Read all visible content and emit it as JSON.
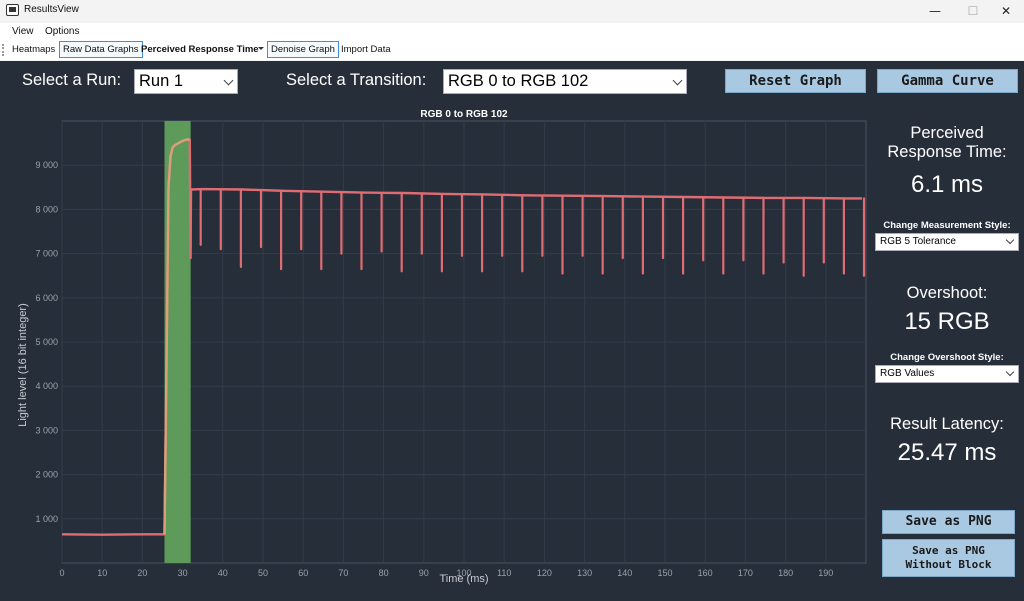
{
  "window": {
    "title": "ResultsView",
    "minimize": "—",
    "maximize": "☐",
    "close": "✕"
  },
  "menu": {
    "items": [
      "View",
      "Options"
    ]
  },
  "toolbar": {
    "heatmaps": "Heatmaps",
    "raw_data_graphs": "Raw Data Graphs",
    "perceived_response_time": "Perceived Response Time",
    "denoise_graph": "Denoise Graph",
    "import_data": "Import Data"
  },
  "controls": {
    "select_run_label": "Select a Run:",
    "run_value": "Run 1",
    "select_transition_label": "Select a Transition:",
    "transition_value": "RGB 0 to RGB 102",
    "reset_graph": "Reset Graph",
    "gamma_curve": "Gamma Curve"
  },
  "stats": {
    "perceived_label_1": "Perceived",
    "perceived_label_2": "Response Time:",
    "perceived_value": "6.1 ms",
    "measurement_style_label": "Change Measurement Style:",
    "measurement_style_value": "RGB 5 Tolerance",
    "overshoot_label": "Overshoot:",
    "overshoot_value": "15 RGB",
    "overshoot_style_label": "Change Overshoot Style:",
    "overshoot_style_value": "RGB Values",
    "latency_label": "Result Latency:",
    "latency_value": "25.47 ms"
  },
  "buttons": {
    "save_png": "Save as PNG",
    "save_png_no_block_1": "Save as PNG",
    "save_png_no_block_2": "Without Block"
  },
  "colors": {
    "background": "#262e3a",
    "line": "#e06c73",
    "highlight_line": "#d9a07a",
    "highlight_block": "#5e9b5b",
    "button": "#a9c9e2"
  },
  "chart_data": {
    "type": "line",
    "title": "RGB 0 to RGB 102",
    "xlabel": "Time (ms)",
    "ylabel": "Light level (16 bit integer)",
    "xlim": [
      0,
      200
    ],
    "ylim": [
      0,
      10000
    ],
    "x_ticks": [
      0,
      10,
      20,
      30,
      40,
      50,
      60,
      70,
      80,
      90,
      100,
      110,
      120,
      130,
      140,
      150,
      160,
      170,
      180,
      190
    ],
    "y_ticks": [
      1000,
      2000,
      3000,
      4000,
      5000,
      6000,
      7000,
      8000,
      9000
    ],
    "y_tick_labels": [
      "1 000",
      "2 000",
      "3 000",
      "4 000",
      "5 000",
      "6 000",
      "7 000",
      "8 000",
      "9 000"
    ],
    "grid": true,
    "highlight_region": [
      25.5,
      32
    ],
    "series": [
      {
        "x": [
          0,
          10,
          20,
          25.5,
          26,
          26.5,
          27,
          27.5,
          28,
          29,
          30,
          31,
          31.8,
          32,
          32.1,
          35,
          45,
          55,
          65,
          75,
          85,
          95,
          105,
          115,
          125,
          135,
          145,
          155,
          165,
          175,
          185,
          195,
          199
        ],
        "values": [
          650,
          640,
          650,
          650,
          4500,
          8500,
          9200,
          9400,
          9450,
          9500,
          9550,
          9580,
          9580,
          6900,
          8450,
          8460,
          8450,
          8420,
          8400,
          8380,
          8370,
          8350,
          8340,
          8320,
          8310,
          8300,
          8290,
          8280,
          8270,
          8260,
          8260,
          8250,
          8250
        ]
      }
    ],
    "dips": {
      "x": [
        34.5,
        39.5,
        44.5,
        49.5,
        54.5,
        59.5,
        64.5,
        69.5,
        74.5,
        79.5,
        84.5,
        89.5,
        94.5,
        99.5,
        104.5,
        109.5,
        114.5,
        119.5,
        124.5,
        129.5,
        134.5,
        139.5,
        144.5,
        149.5,
        154.5,
        159.5,
        164.5,
        169.5,
        174.5,
        179.5,
        184.5,
        189.5,
        194.5,
        199.5
      ],
      "values": [
        7200,
        7100,
        6700,
        7150,
        6650,
        7100,
        6650,
        7000,
        6650,
        7050,
        6600,
        7000,
        6600,
        6950,
        6600,
        6950,
        6600,
        6950,
        6550,
        6950,
        6550,
        6900,
        6550,
        6900,
        6550,
        6850,
        6550,
        6850,
        6550,
        6800,
        6500,
        6800,
        6550,
        6500
      ]
    }
  }
}
